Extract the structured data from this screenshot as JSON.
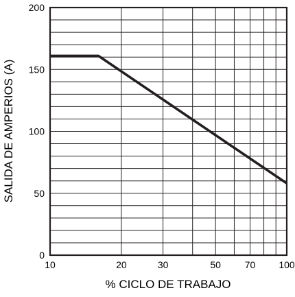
{
  "chart_data": {
    "type": "line",
    "title": "",
    "xlabel": "% CICLO DE TRABAJO",
    "ylabel": "SALIDA DE AMPERIOS (A)",
    "x_scale": "log",
    "xlim": [
      10,
      100
    ],
    "ylim": [
      0,
      200
    ],
    "grid": true,
    "x_ticks": [
      10,
      20,
      30,
      50,
      70,
      100
    ],
    "x_tick_labels": [
      "10",
      "20",
      "30",
      "50",
      "70",
      "100"
    ],
    "x_grid_values": [
      10,
      20,
      30,
      40,
      50,
      60,
      70,
      80,
      90,
      100
    ],
    "y_ticks": [
      0,
      50,
      100,
      150,
      200
    ],
    "y_tick_labels": [
      "0",
      "50",
      "100",
      "150",
      "200"
    ],
    "y_grid_step": 10,
    "series": [
      {
        "x": [
          10,
          16,
          100
        ],
        "y": [
          161,
          161,
          58
        ]
      }
    ],
    "colors": {
      "line": "#231f20",
      "grid": "#231f20"
    }
  }
}
